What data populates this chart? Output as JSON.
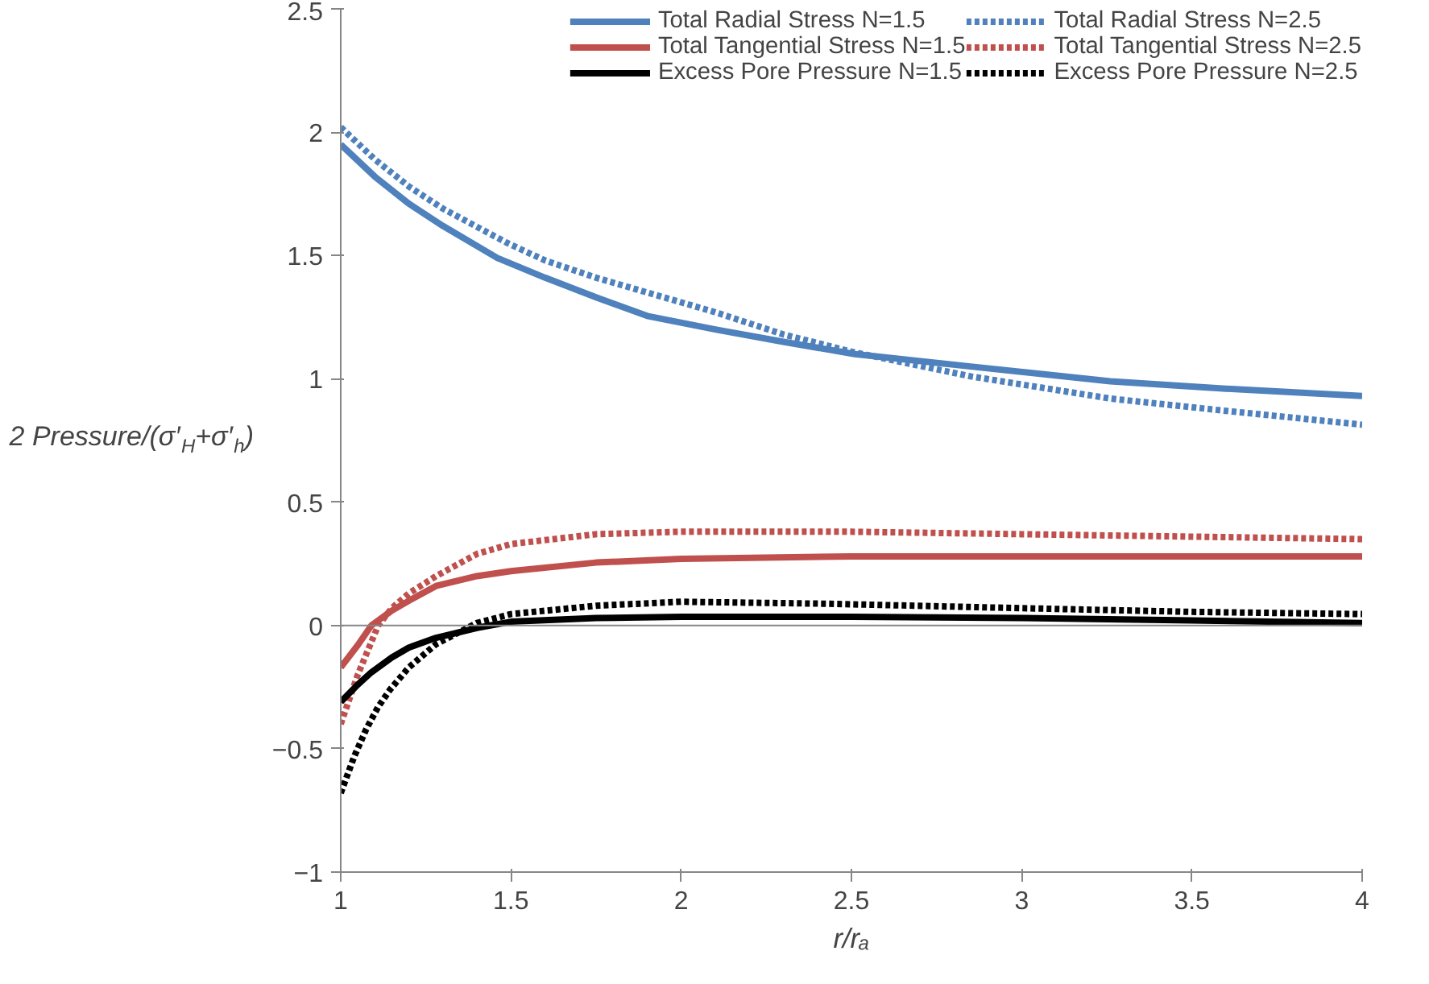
{
  "chart_data": {
    "type": "line",
    "xlabel": "r/rₐ",
    "ylabel": "2 Pressure/(σ′$_{H}$+σ′$_{h}$)",
    "xlim": [
      1,
      4
    ],
    "ylim": [
      -1,
      2.5
    ],
    "xticks": [
      1,
      1.5,
      2,
      2.5,
      3,
      3.5,
      4
    ],
    "yticks": [
      -1,
      -0.5,
      0,
      0.5,
      1,
      1.5,
      2,
      2.5
    ],
    "grid": false,
    "ref_lines": [
      {
        "axis": "y",
        "value": 0,
        "color": "#868686"
      }
    ],
    "legend": "top right",
    "marker": "none",
    "series": [
      {
        "name": "Total Radial Stress N=1.5",
        "color": "#4f81bd",
        "line_style": "solid",
        "x": [
          1,
          1.1,
          1.2,
          1.3,
          1.46,
          1.6,
          1.75,
          1.9,
          2.1,
          2.3,
          2.51,
          2.85,
          3.26,
          3.6,
          4
        ],
        "values": [
          1.95,
          1.82,
          1.71,
          1.62,
          1.49,
          1.41,
          1.33,
          1.255,
          1.2,
          1.15,
          1.1,
          1.05,
          0.99,
          0.96,
          0.93
        ]
      },
      {
        "name": "Total Radial Stress N=2.5",
        "color": "#4f81bd",
        "line_style": "dotted",
        "x": [
          1,
          1.1,
          1.2,
          1.3,
          1.49,
          1.6,
          1.75,
          1.9,
          2.1,
          2.3,
          2.5,
          2.85,
          3.26,
          3.6,
          4
        ],
        "values": [
          2.02,
          1.89,
          1.78,
          1.69,
          1.55,
          1.48,
          1.41,
          1.35,
          1.27,
          1.18,
          1.11,
          1.01,
          0.92,
          0.87,
          0.814
        ]
      },
      {
        "name": "Total Tangential Stress N=1.5",
        "color": "#c0504d",
        "line_style": "solid",
        "x": [
          1,
          1.05,
          1.09,
          1.15,
          1.2,
          1.28,
          1.4,
          1.5,
          1.75,
          2,
          2.5,
          3,
          3.5,
          4
        ],
        "values": [
          -0.17,
          -0.08,
          0,
          0.06,
          0.1,
          0.16,
          0.2,
          0.22,
          0.255,
          0.27,
          0.28,
          0.28,
          0.28,
          0.28
        ]
      },
      {
        "name": "Total Tangential Stress N=2.5",
        "color": "#c0504d",
        "line_style": "dotted",
        "x": [
          1,
          1.05,
          1.11,
          1.15,
          1.2,
          1.28,
          1.4,
          1.5,
          1.75,
          2,
          2.5,
          3,
          3.5,
          4
        ],
        "values": [
          -0.4,
          -0.2,
          0,
          0.07,
          0.13,
          0.2,
          0.29,
          0.33,
          0.37,
          0.38,
          0.38,
          0.37,
          0.36,
          0.35
        ]
      },
      {
        "name": "Excess Pore Pressure N=1.5",
        "color": "#000000",
        "line_style": "solid",
        "x": [
          1,
          1.05,
          1.09,
          1.15,
          1.2,
          1.28,
          1.4,
          1.5,
          1.75,
          2,
          2.5,
          3,
          3.5,
          4
        ],
        "values": [
          -0.31,
          -0.24,
          -0.19,
          -0.13,
          -0.09,
          -0.05,
          -0.01,
          0.015,
          0.03,
          0.035,
          0.035,
          0.03,
          0.02,
          0.01
        ]
      },
      {
        "name": "Excess Pore Pressure N=2.5",
        "color": "#000000",
        "line_style": "dotted",
        "x": [
          1,
          1.04,
          1.075,
          1.11,
          1.145,
          1.2,
          1.28,
          1.4,
          1.5,
          1.75,
          2,
          2.43,
          3,
          3.5,
          4
        ],
        "values": [
          -0.68,
          -0.53,
          -0.42,
          -0.33,
          -0.26,
          -0.17,
          -0.076,
          0.01,
          0.046,
          0.08,
          0.096,
          0.088,
          0.07,
          0.055,
          0.046
        ]
      }
    ]
  }
}
